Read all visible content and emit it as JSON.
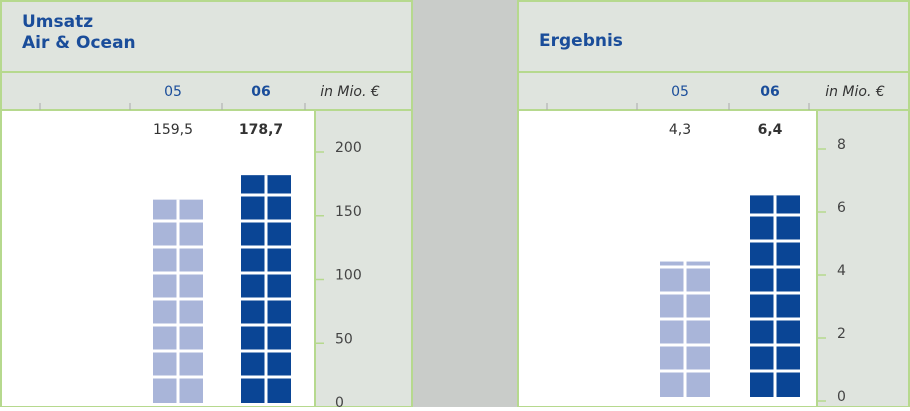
{
  "chart_data": [
    {
      "type": "bar",
      "title": [
        "Umsatz",
        "Air & Ocean"
      ],
      "categories": [
        "05",
        "06"
      ],
      "unit": "in Mio. €",
      "values": [
        159.5,
        178.7
      ],
      "value_labels": [
        "159,5",
        "178,7"
      ],
      "colors": [
        "#a9b5d9",
        "#0a4595"
      ],
      "ylim": [
        0,
        200
      ],
      "yticks": [
        0,
        50,
        100,
        150,
        200
      ]
    },
    {
      "type": "bar",
      "title": [
        "Ergebnis"
      ],
      "categories": [
        "05",
        "06"
      ],
      "unit": "in Mio. €",
      "values": [
        4.3,
        6.4
      ],
      "value_labels": [
        "4,3",
        "6,4"
      ],
      "colors": [
        "#a9b5d9",
        "#0a4595"
      ],
      "ylim": [
        0,
        8
      ],
      "yticks": [
        0,
        2,
        4,
        6,
        8
      ]
    }
  ]
}
